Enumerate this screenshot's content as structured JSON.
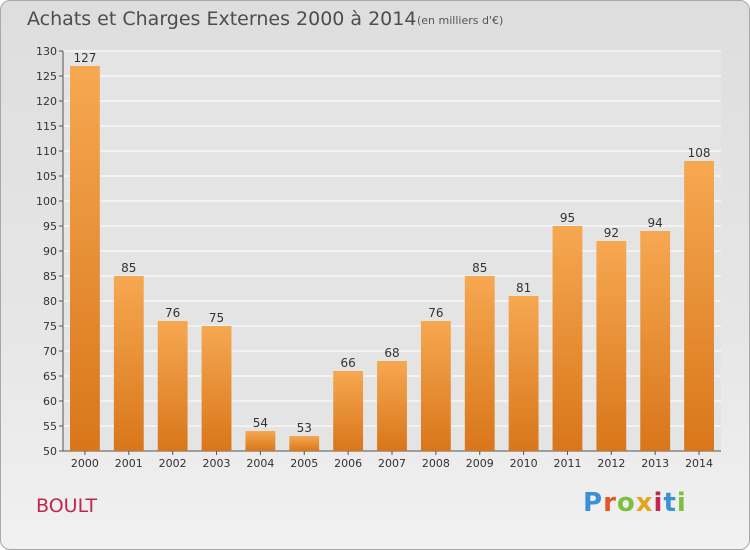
{
  "title": "Achats et Charges Externes 2000 à 2014",
  "unit": "(en milliers d'€)",
  "commune": "BOULT",
  "logo": {
    "letters": [
      "P",
      "r",
      "o",
      "x",
      "i",
      "t",
      "i"
    ],
    "colors": [
      "#3a8fd6",
      "#e0562e",
      "#7fbf3f",
      "#e3a41f",
      "#c2264a",
      "#3a8fd6",
      "#7fbf3f"
    ]
  },
  "colors": {
    "bar_light": "#f6a851",
    "bar_dark": "#d9761a",
    "grid": "#ffffff",
    "title": "#4d4d4d",
    "commune": "#c2264a"
  },
  "chart_data": {
    "type": "bar",
    "categories": [
      "2000",
      "2001",
      "2002",
      "2003",
      "2004",
      "2005",
      "2006",
      "2007",
      "2008",
      "2009",
      "2010",
      "2011",
      "2012",
      "2013",
      "2014"
    ],
    "values": [
      127,
      85,
      76,
      75,
      54,
      53,
      66,
      68,
      76,
      85,
      81,
      95,
      92,
      94,
      108
    ],
    "title": "Achats et Charges Externes 2000 à 2014",
    "ylim": [
      50,
      130
    ],
    "yticks": [
      50,
      55,
      60,
      65,
      70,
      75,
      80,
      85,
      90,
      95,
      100,
      105,
      110,
      115,
      120,
      125,
      130
    ],
    "grid": true,
    "data_labels": true
  }
}
